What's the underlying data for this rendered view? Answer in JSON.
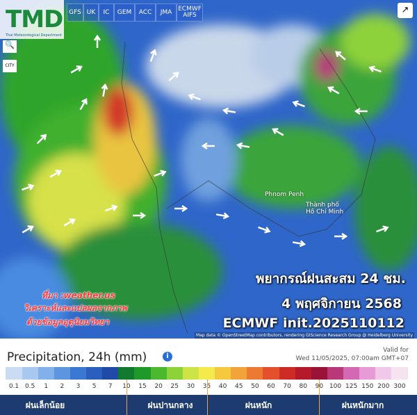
{
  "header": {
    "logo": "TMD",
    "logo_subtitle": "Thai Meteorological Department",
    "models": [
      "GFS",
      "UK",
      "IC",
      "GEM",
      "ACC",
      "JMA",
      "ECMWF AIFS"
    ]
  },
  "map": {
    "places": [
      "Phnom Penh",
      "Thành phố Hồ Chí Minh"
    ],
    "overlay": {
      "title": "พยากรณ์ฝนสะสม 24 ชม.",
      "date": "4 พฤศจิกายน 2568",
      "model": "ECMWF init.2025110112"
    },
    "credit": [
      "ที่มา :weather.us",
      "วิเคราะห์และแปลผลจากภาพ",
      "ด้วยข้อมูลอุตุนิยมวิทยา"
    ],
    "attribution": "Map data © OpenStreetMap contributors, rendering GIScience Research Group @ Heidelberg University"
  },
  "legend": {
    "title": "Precipitation, 24h (mm)",
    "valid_label": "Valid for",
    "valid_time": "Wed 11/05/2025, 07:00am GMT+07",
    "scale": [
      "0.1",
      "0.5",
      "1",
      "2",
      "3",
      "5",
      "7",
      "10",
      "15",
      "20",
      "25",
      "30",
      "35",
      "40",
      "45",
      "50",
      "60",
      "70",
      "80",
      "90",
      "100",
      "125",
      "150",
      "200",
      "300"
    ],
    "colors": [
      "#c9dcf4",
      "#a9c8f0",
      "#82b0ea",
      "#5d95e0",
      "#3b78d4",
      "#2a5fbf",
      "#1f4aa5",
      "#127a2e",
      "#1f9a2a",
      "#4cb82e",
      "#8ed23a",
      "#cde346",
      "#f4ea4b",
      "#f5c83e",
      "#f2a33a",
      "#ec7a32",
      "#e2512b",
      "#cf2b26",
      "#b5192b",
      "#9b1237",
      "#b8387a",
      "#d468b5",
      "#e79ad6",
      "#f2c8ea",
      "#f5e3f2"
    ],
    "categories": [
      "ฝนเล็กน้อย",
      "ฝนปานกลาง",
      "ฝนหนัก",
      "ฝนหนักมาก"
    ]
  }
}
